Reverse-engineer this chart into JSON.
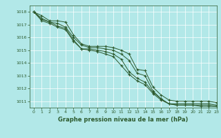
{
  "title": "Graphe pression niveau de la mer (hPa)",
  "bg_color": "#b2e8e8",
  "grid_color": "#ffffff",
  "line_color": "#2d5a2d",
  "marker_color": "#2d5a2d",
  "xlim": [
    -0.5,
    23
  ],
  "ylim": [
    1010.5,
    1018.5
  ],
  "yticks": [
    1011,
    1012,
    1013,
    1014,
    1015,
    1016,
    1017,
    1018
  ],
  "xticks": [
    0,
    1,
    2,
    3,
    4,
    5,
    6,
    7,
    8,
    9,
    10,
    11,
    12,
    13,
    14,
    15,
    16,
    17,
    18,
    19,
    20,
    21,
    22,
    23
  ],
  "series": [
    [
      1018.0,
      1017.7,
      1017.3,
      1017.3,
      1017.2,
      1016.2,
      1015.5,
      1015.3,
      1015.3,
      1015.3,
      1015.2,
      1015.0,
      1014.7,
      1013.5,
      1013.4,
      1012.1,
      1011.5,
      1011.1,
      1011.0,
      1011.0,
      1011.0,
      1011.0,
      1011.0,
      1010.9
    ],
    [
      1018.0,
      1017.5,
      1017.2,
      1017.1,
      1016.8,
      1016.0,
      1015.4,
      1015.2,
      1015.2,
      1015.1,
      1015.0,
      1014.7,
      1014.2,
      1013.2,
      1013.0,
      1011.8,
      1011.2,
      1010.8,
      1010.8,
      1010.8,
      1010.8,
      1010.8,
      1010.8,
      1010.7
    ],
    [
      1018.0,
      1017.4,
      1017.2,
      1016.9,
      1016.7,
      1015.8,
      1015.1,
      1015.1,
      1015.0,
      1014.9,
      1014.7,
      1014.3,
      1013.3,
      1012.8,
      1012.5,
      1011.7,
      1011.2,
      1010.8,
      1010.7,
      1010.7,
      1010.7,
      1010.7,
      1010.7,
      1010.6
    ],
    [
      1018.0,
      1017.3,
      1017.1,
      1016.8,
      1016.6,
      1015.7,
      1015.1,
      1015.0,
      1014.9,
      1014.7,
      1014.5,
      1013.8,
      1013.1,
      1012.6,
      1012.3,
      1011.6,
      1011.1,
      1010.8,
      1010.7,
      1010.7,
      1010.7,
      1010.6,
      1010.6,
      1010.6
    ]
  ]
}
